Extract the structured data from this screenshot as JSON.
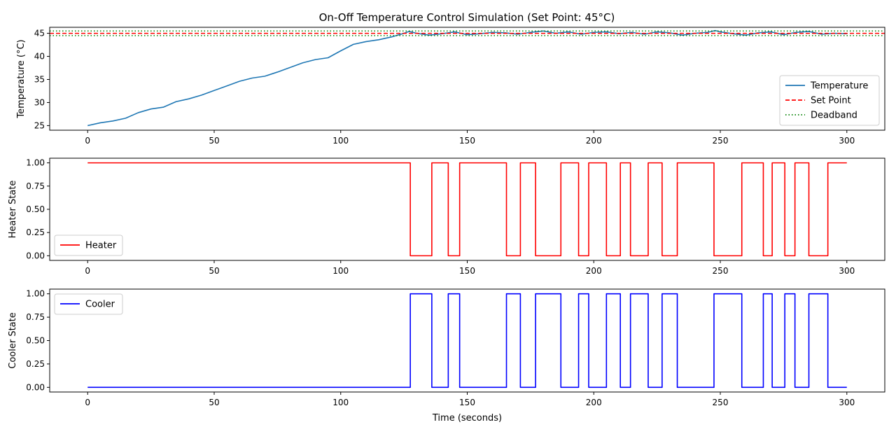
{
  "figure_title": "On-Off Temperature Control Simulation (Set Point: 45°C)",
  "colors": {
    "temperature": "#1f77b4",
    "heater": "#ff0000",
    "cooler": "#0000ff",
    "set_point": "#ff0000",
    "deadband": "#008000"
  },
  "chart_data": [
    {
      "type": "line",
      "title": "On-Off Temperature Control Simulation (Set Point: 45°C)",
      "xlabel": "",
      "ylabel": "Temperature (°C)",
      "xlim": [
        -15,
        315
      ],
      "ylim": [
        24,
        46.3
      ],
      "xticks": [
        0,
        50,
        100,
        150,
        200,
        250,
        300
      ],
      "yticks": [
        25,
        30,
        35,
        40,
        45
      ],
      "legend": "lower-right",
      "series": [
        {
          "name": "Temperature",
          "style": "solid",
          "x": [
            0,
            5,
            10,
            15,
            20,
            25,
            30,
            35,
            40,
            45,
            50,
            55,
            60,
            65,
            70,
            75,
            80,
            85,
            90,
            95,
            100,
            105,
            110,
            115,
            120,
            125,
            127,
            130,
            135,
            140,
            145,
            150,
            155,
            160,
            165,
            170,
            175,
            180,
            185,
            190,
            195,
            200,
            205,
            210,
            215,
            220,
            225,
            230,
            235,
            240,
            245,
            248,
            250,
            255,
            260,
            265,
            270,
            275,
            280,
            285,
            290,
            295,
            300
          ],
          "y": [
            25.0,
            25.6,
            26.0,
            26.6,
            27.8,
            28.6,
            29.0,
            30.2,
            30.8,
            31.6,
            32.6,
            33.6,
            34.6,
            35.3,
            35.7,
            36.6,
            37.6,
            38.6,
            39.3,
            39.7,
            41.2,
            42.6,
            43.2,
            43.6,
            44.2,
            45.0,
            45.4,
            45.0,
            44.6,
            44.9,
            45.3,
            44.7,
            44.9,
            45.2,
            45.1,
            44.8,
            45.2,
            45.5,
            45.0,
            45.3,
            44.8,
            45.2,
            45.3,
            44.9,
            45.2,
            44.8,
            45.3,
            45.1,
            44.6,
            45.0,
            45.2,
            45.6,
            45.3,
            44.9,
            44.6,
            45.1,
            45.3,
            44.7,
            45.2,
            45.4,
            44.8,
            45.0,
            44.9
          ]
        },
        {
          "name": "Set Point",
          "style": "dashed",
          "y_constant": 45.0
        },
        {
          "name": "Deadband",
          "style": "dotted",
          "y_constant": [
            44.5,
            45.5
          ]
        }
      ]
    },
    {
      "type": "line",
      "xlabel": "",
      "ylabel": "Heater State",
      "xlim": [
        -15,
        315
      ],
      "ylim": [
        -0.05,
        1.05
      ],
      "xticks": [
        0,
        50,
        100,
        150,
        200,
        250,
        300
      ],
      "yticks": [
        "0.00",
        "0.25",
        "0.50",
        "0.75",
        "1.00"
      ],
      "legend": "lower-left",
      "series": [
        {
          "name": "Heater",
          "step": true,
          "x": [
            0,
            127.5,
            136,
            142.5,
            147,
            165.5,
            171,
            177,
            187,
            194,
            198,
            205,
            210.5,
            214.5,
            221.5,
            227,
            233,
            247.5,
            258.5,
            267,
            270.5,
            275.5,
            279.5,
            285,
            292.5,
            300
          ],
          "y": [
            1,
            0,
            1,
            0,
            1,
            0,
            1,
            0,
            1,
            0,
            1,
            0,
            1,
            0,
            1,
            0,
            1,
            0,
            1,
            0,
            1,
            0,
            1,
            0,
            1,
            1
          ]
        }
      ]
    },
    {
      "type": "line",
      "xlabel": "Time (seconds)",
      "ylabel": "Cooler State",
      "xlim": [
        -15,
        315
      ],
      "ylim": [
        -0.05,
        1.05
      ],
      "xticks": [
        0,
        50,
        100,
        150,
        200,
        250,
        300
      ],
      "yticks": [
        "0.00",
        "0.25",
        "0.50",
        "0.75",
        "1.00"
      ],
      "legend": "top-left",
      "series": [
        {
          "name": "Cooler",
          "step": true,
          "x": [
            0,
            127.5,
            136,
            142.5,
            147,
            165.5,
            171,
            177,
            187,
            194,
            198,
            205,
            210.5,
            214.5,
            221.5,
            227,
            233,
            247.5,
            258.5,
            267,
            270.5,
            275.5,
            279.5,
            285,
            292.5,
            300
          ],
          "y": [
            0,
            1,
            0,
            1,
            0,
            1,
            0,
            1,
            0,
            1,
            0,
            1,
            0,
            1,
            0,
            1,
            0,
            1,
            0,
            1,
            0,
            1,
            0,
            1,
            0,
            0
          ]
        }
      ]
    }
  ]
}
